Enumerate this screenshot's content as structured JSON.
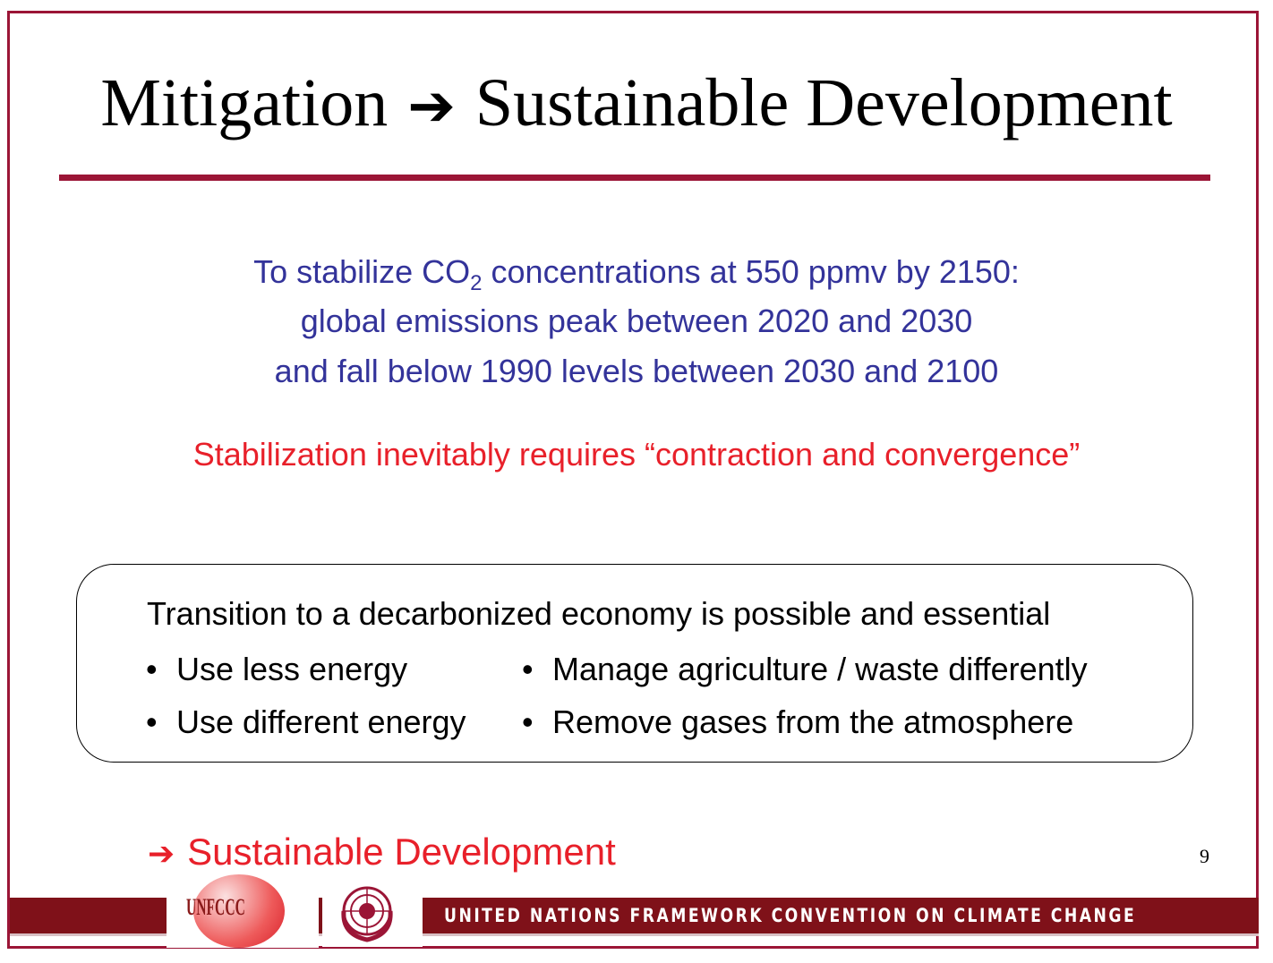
{
  "slide": {
    "title_left": "Mitigation",
    "title_arrow_icon": "right-arrow",
    "title_right": "Sustainable Development",
    "intro_line1_pre": "To stabilize CO",
    "intro_line1_sub": "2",
    "intro_line1_post": " concentrations at 550 ppmv by 2150:",
    "intro_line2": "global emissions peak between 2020 and 2030",
    "intro_line3": "and fall below 1990 levels between 2030 and 2100",
    "highlight": "Stabilization inevitably requires “contraction and convergence”",
    "box": {
      "heading": "Transition to a decarbonized economy is possible and essential",
      "bullets": [
        "Use less energy",
        "Manage agriculture / waste differently",
        "Use different energy",
        "Remove gases from the atmosphere"
      ]
    },
    "conclusion": "Sustainable Development",
    "page_number": "9"
  },
  "footer": {
    "logo_text": "UNFCCC",
    "banner": "UNITED NATIONS FRAMEWORK CONVENTION ON CLIMATE CHANGE"
  },
  "colors": {
    "accent": "#9b1536",
    "blue_text": "#33339a",
    "red_text": "#e8202a",
    "band": "#7f1119"
  }
}
